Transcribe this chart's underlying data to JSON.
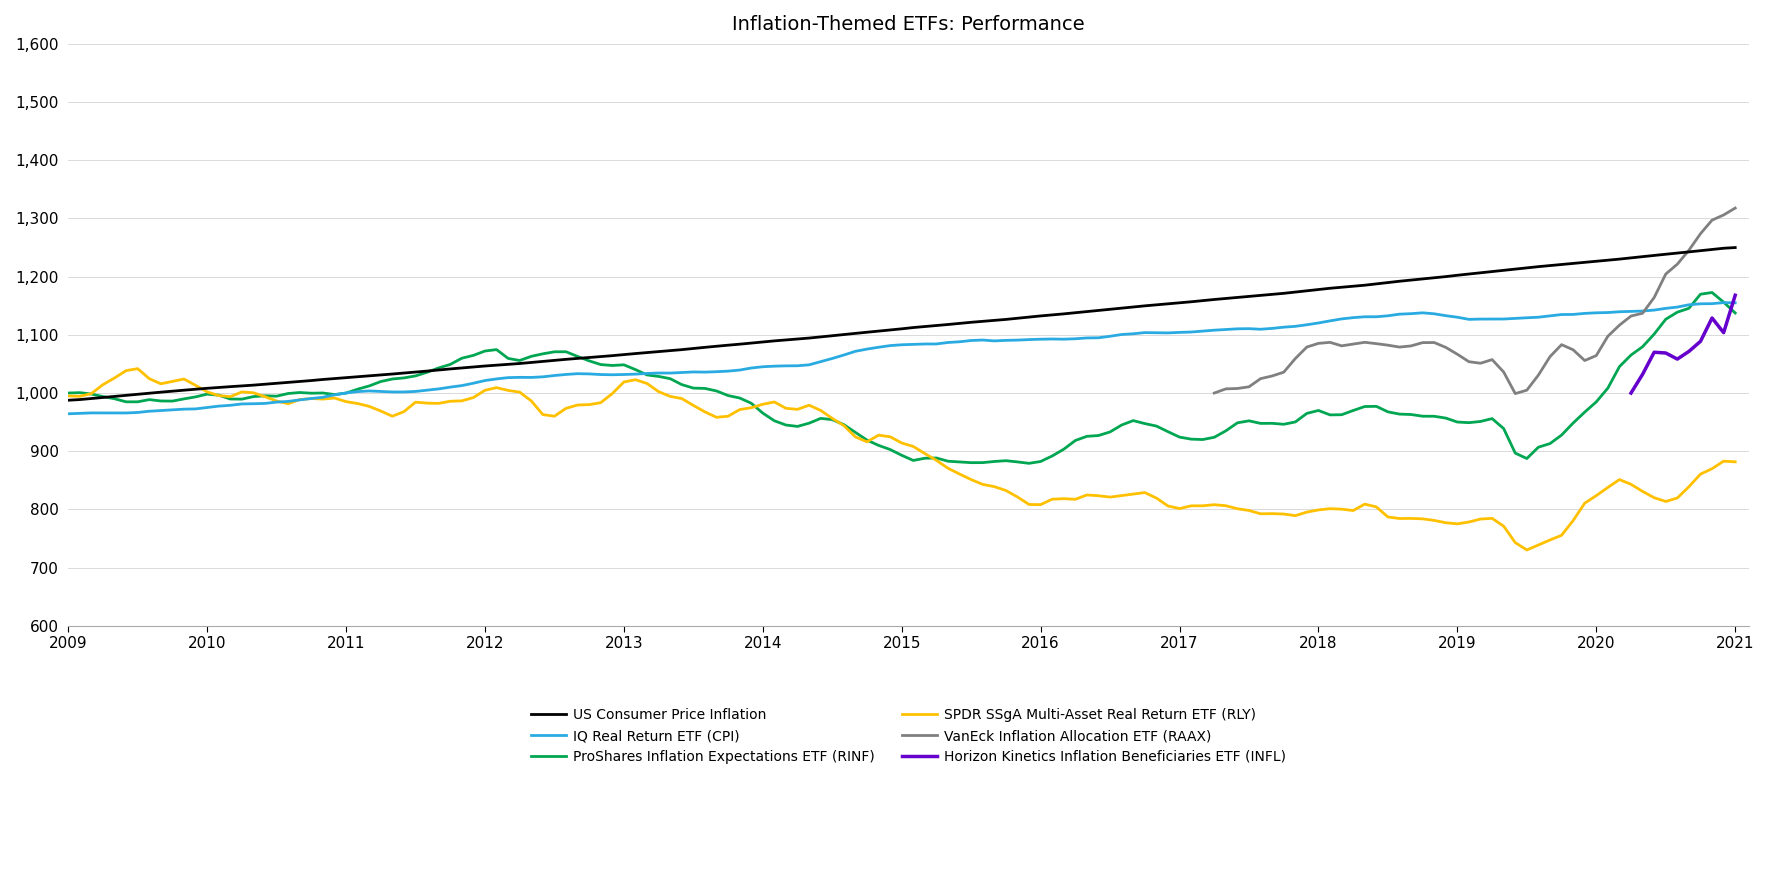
{
  "title": "Inflation-Themed ETFs: Performance",
  "ylabel": "",
  "xlabel": "",
  "ylim": [
    600,
    1600
  ],
  "yticks": [
    600,
    700,
    800,
    900,
    1000,
    1100,
    1200,
    1300,
    1400,
    1500,
    1600
  ],
  "start_year": 2009,
  "end_year": 2021,
  "xtick_years": [
    2009,
    2010,
    2011,
    2012,
    2013,
    2014,
    2015,
    2016,
    2017,
    2018,
    2019,
    2020,
    2021
  ],
  "series_colors": {
    "cpi_us": "#000000",
    "iq_cpi": "#29ABE2",
    "rinf": "#00A651",
    "rly": "#FFC000",
    "raax": "#808080",
    "infl": "#6600CC"
  },
  "series_labels": {
    "cpi_us": "US Consumer Price Inflation",
    "iq_cpi": "IQ Real Return ETF (CPI)",
    "rinf": "ProShares Inflation Expectations ETF (RINF)",
    "rly": "SPDR SSgA Multi-Asset Real Return ETF (RLY)",
    "raax": "VanEck Inflation Allocation ETF (RAAX)",
    "infl": "Horizon Kinetics Inflation Beneficiaries ETF (INFL)"
  },
  "linewidths": {
    "cpi_us": 2.0,
    "iq_cpi": 2.0,
    "rinf": 2.0,
    "rly": 2.0,
    "raax": 2.0,
    "infl": 2.5
  },
  "background_color": "#FFFFFF",
  "title_fontsize": 14,
  "legend_fontsize": 10,
  "tick_fontsize": 11
}
